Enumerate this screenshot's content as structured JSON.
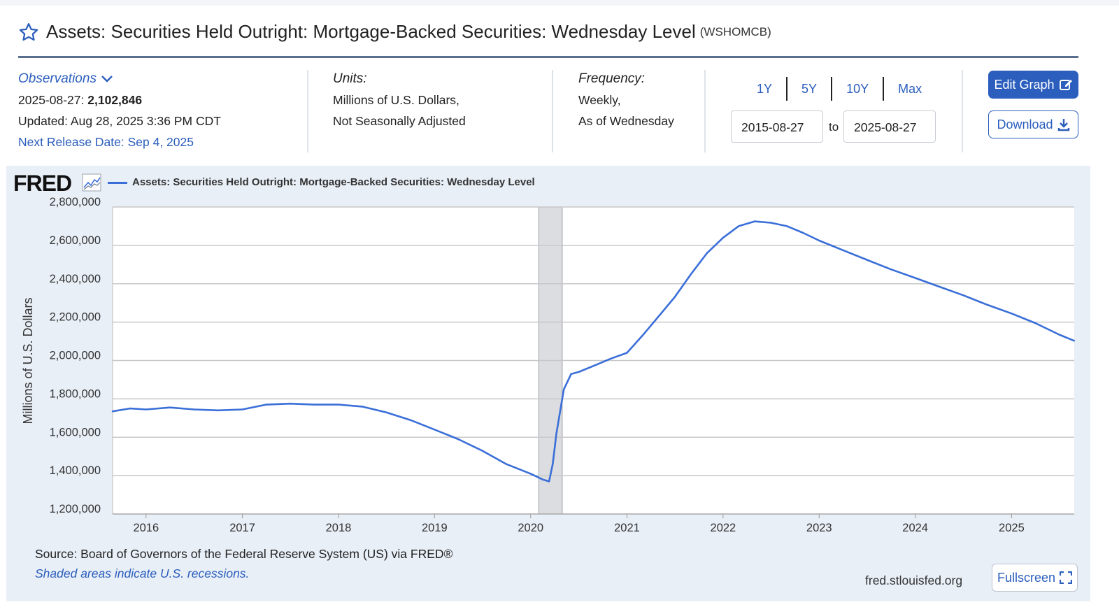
{
  "header": {
    "title": "Assets: Securities Held Outright: Mortgage-Backed Securities: Wednesday Level",
    "series_id": "(WSHOMCB)"
  },
  "observations": {
    "label": "Observations",
    "date": "2025-08-27:",
    "value": "2,102,846",
    "updated": "Updated: Aug 28, 2025 3:36 PM CDT",
    "next_release": "Next Release Date: Sep 4, 2025"
  },
  "units": {
    "label": "Units:",
    "line1": "Millions of U.S. Dollars,",
    "line2": "Not Seasonally Adjusted"
  },
  "frequency": {
    "label": "Frequency:",
    "line1": "Weekly,",
    "line2": "As of Wednesday"
  },
  "range": {
    "buttons": [
      "1Y",
      "5Y",
      "10Y",
      "Max"
    ],
    "start": "2015-08-27",
    "to_label": "to",
    "end": "2025-08-27"
  },
  "actions": {
    "edit_label": "Edit Graph",
    "download_label": "Download",
    "fullscreen_label": "Fullscreen"
  },
  "footer": {
    "source": "Source: Board of Governors of the Federal Reserve System (US) via FRED®",
    "shade_note": "Shaded areas indicate U.S. recessions.",
    "site": "fred.stlouisfed.org"
  },
  "branding": {
    "logo_text": "FRED"
  },
  "colors": {
    "accent": "#2b5ebd",
    "line": "#3b6fd8",
    "recession": "#dcdde0",
    "panel": "#e9eff7"
  },
  "chart_data": {
    "type": "line",
    "title": "",
    "xlabel": "",
    "ylabel": "Millions of U.S. Dollars",
    "xlim": [
      "2015-08-27",
      "2025-08-27"
    ],
    "ylim": [
      1200000,
      2800000
    ],
    "yticks": [
      1200000,
      1400000,
      1600000,
      1800000,
      2000000,
      2200000,
      2400000,
      2600000,
      2800000
    ],
    "ytick_labels": [
      "1,200,000",
      "1,400,000",
      "1,600,000",
      "1,800,000",
      "2,000,000",
      "2,200,000",
      "2,400,000",
      "2,600,000",
      "2,800,000"
    ],
    "xticks": [
      "2016-01-01",
      "2017-01-01",
      "2018-01-01",
      "2019-01-01",
      "2020-01-01",
      "2021-01-01",
      "2022-01-01",
      "2023-01-01",
      "2024-01-01",
      "2025-01-01"
    ],
    "xtick_labels": [
      "2016",
      "2017",
      "2018",
      "2019",
      "2020",
      "2021",
      "2022",
      "2023",
      "2024",
      "2025"
    ],
    "grid": true,
    "legend_position": "top-left",
    "recessions": [
      {
        "start": "2020-02-01",
        "end": "2020-04-30"
      }
    ],
    "series": [
      {
        "name": "Assets: Securities Held Outright: Mortgage-Backed Securities: Wednesday Level",
        "points": [
          [
            "2015-08-27",
            1735000
          ],
          [
            "2015-11-01",
            1750000
          ],
          [
            "2016-01-01",
            1745000
          ],
          [
            "2016-04-01",
            1755000
          ],
          [
            "2016-07-01",
            1745000
          ],
          [
            "2016-10-01",
            1740000
          ],
          [
            "2017-01-01",
            1745000
          ],
          [
            "2017-04-01",
            1770000
          ],
          [
            "2017-07-01",
            1775000
          ],
          [
            "2017-10-01",
            1770000
          ],
          [
            "2018-01-01",
            1770000
          ],
          [
            "2018-04-01",
            1760000
          ],
          [
            "2018-07-01",
            1730000
          ],
          [
            "2018-10-01",
            1690000
          ],
          [
            "2019-01-01",
            1640000
          ],
          [
            "2019-04-01",
            1590000
          ],
          [
            "2019-07-01",
            1530000
          ],
          [
            "2019-10-01",
            1460000
          ],
          [
            "2020-01-01",
            1410000
          ],
          [
            "2020-02-15",
            1380000
          ],
          [
            "2020-03-11",
            1370000
          ],
          [
            "2020-03-25",
            1460000
          ],
          [
            "2020-04-08",
            1620000
          ],
          [
            "2020-05-06",
            1850000
          ],
          [
            "2020-06-03",
            1930000
          ],
          [
            "2020-07-01",
            1940000
          ],
          [
            "2020-09-01",
            1975000
          ],
          [
            "2020-11-01",
            2010000
          ],
          [
            "2021-01-01",
            2040000
          ],
          [
            "2021-03-01",
            2130000
          ],
          [
            "2021-05-01",
            2230000
          ],
          [
            "2021-07-01",
            2330000
          ],
          [
            "2021-09-01",
            2450000
          ],
          [
            "2021-11-01",
            2560000
          ],
          [
            "2022-01-01",
            2640000
          ],
          [
            "2022-03-01",
            2700000
          ],
          [
            "2022-05-01",
            2725000
          ],
          [
            "2022-07-01",
            2718000
          ],
          [
            "2022-09-01",
            2700000
          ],
          [
            "2022-11-01",
            2665000
          ],
          [
            "2023-01-01",
            2625000
          ],
          [
            "2023-04-01",
            2575000
          ],
          [
            "2023-07-01",
            2525000
          ],
          [
            "2023-10-01",
            2475000
          ],
          [
            "2024-01-01",
            2430000
          ],
          [
            "2024-04-01",
            2385000
          ],
          [
            "2024-07-01",
            2340000
          ],
          [
            "2024-10-01",
            2290000
          ],
          [
            "2025-01-01",
            2245000
          ],
          [
            "2025-04-01",
            2195000
          ],
          [
            "2025-07-01",
            2135000
          ],
          [
            "2025-08-27",
            2102846
          ]
        ]
      }
    ]
  }
}
